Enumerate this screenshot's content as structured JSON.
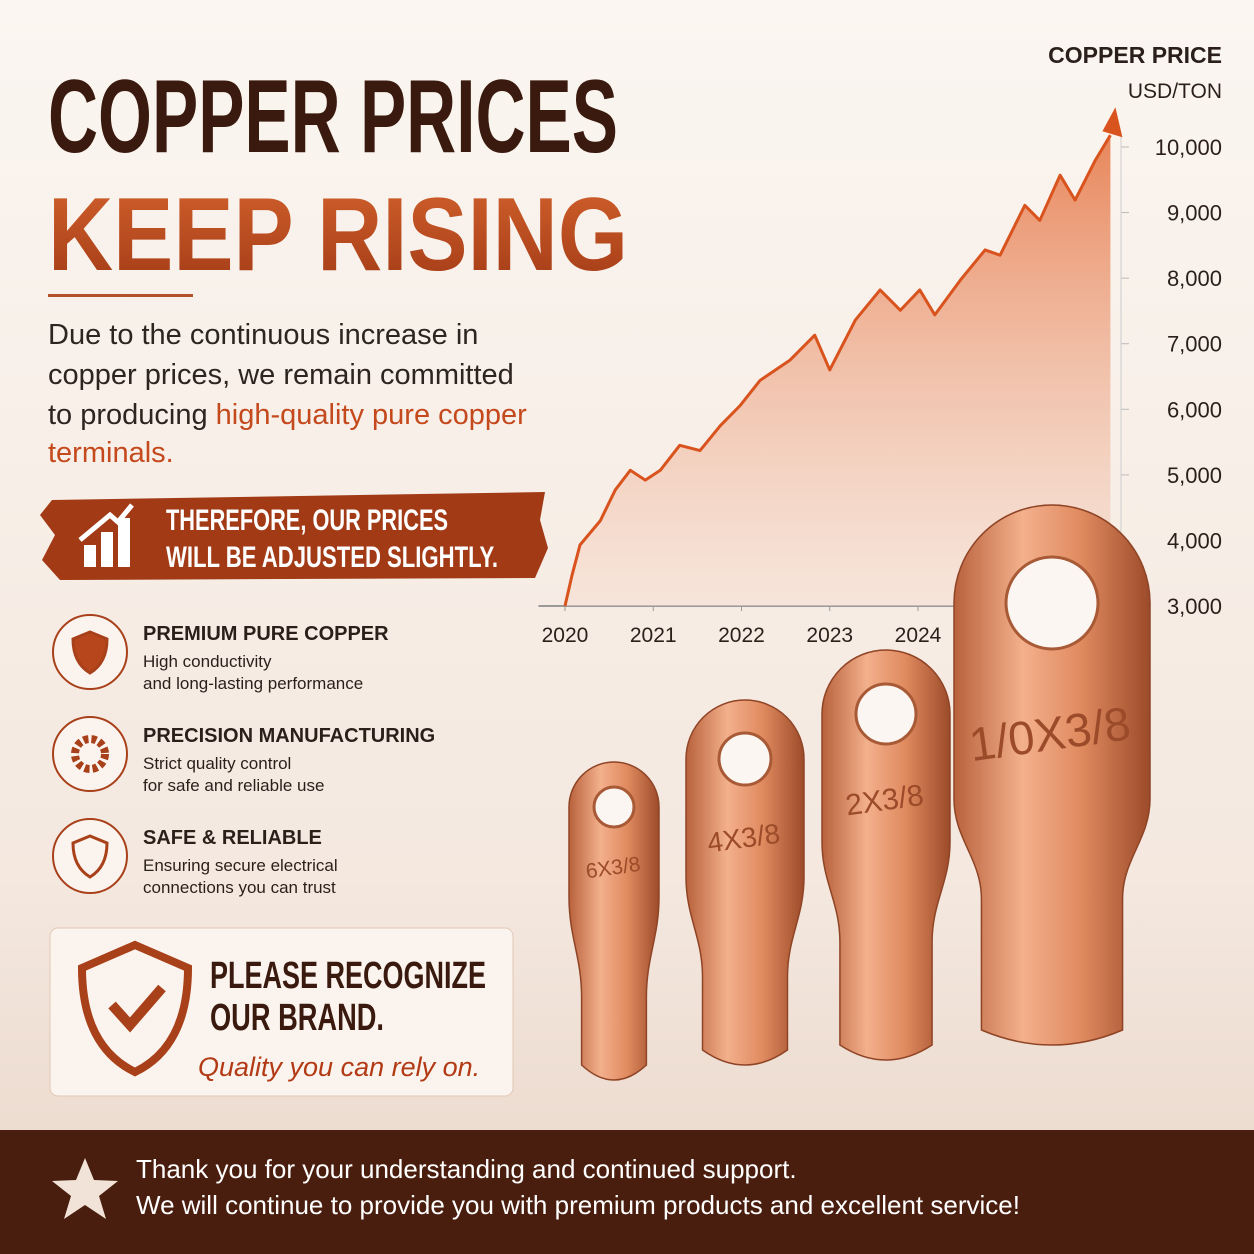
{
  "header": {
    "title_line1": "COPPER PRICES",
    "title_line2": "KEEP RISING"
  },
  "intro": {
    "lines": [
      "Due to the continuous increase in",
      "copper prices, we remain committed",
      "to producing "
    ],
    "highlight": [
      "high-quality pure copper",
      "terminals."
    ]
  },
  "banner": {
    "lines": [
      "THEREFORE, OUR PRICES",
      "WILL BE ADJUSTED SLIGHTLY."
    ]
  },
  "features": [
    {
      "title": "PREMIUM PURE COPPER",
      "description": [
        "High conductivity",
        "and long-lasting performance"
      ]
    },
    {
      "title": "PRECISION MANUFACTURING",
      "description": [
        "Strict quality control",
        "for safe and reliable use"
      ]
    },
    {
      "title": "SAFE & RELIABLE",
      "description": [
        "Ensuring secure electrical",
        "connections you can trust"
      ]
    }
  ],
  "brand": {
    "lines": [
      "PLEASE RECOGNIZE",
      "OUR BRAND."
    ],
    "tagline": "Quality you can rely on."
  },
  "products": [
    "6X3/8",
    "4X3/8",
    "2X3/8",
    "1/0X3/8"
  ],
  "footer": {
    "lines": [
      "Thank you for your understanding and continued support.",
      "We will continue to provide you with premium products and excellent service!"
    ]
  },
  "chart_data": {
    "type": "line",
    "title": "COPPER PRICE",
    "subtitle": "USD/TON",
    "x": [
      2020.0,
      2020.08,
      2020.17,
      2020.4,
      2020.57,
      2020.74,
      2020.91,
      2021.08,
      2021.3,
      2021.53,
      2021.76,
      2021.98,
      2022.21,
      2022.55,
      2022.83,
      2023.0,
      2023.29,
      2023.57,
      2023.8,
      2024.02,
      2024.19,
      2024.48,
      2024.76,
      2024.93,
      2025.21,
      2025.38,
      2025.61,
      2025.78,
      2026.01,
      2026.18
    ],
    "series": [
      {
        "color": "#d9531e",
        "values": [
          3000,
          3470,
          3930,
          4300,
          4770,
          5070,
          4920,
          5070,
          5450,
          5370,
          5750,
          6050,
          6440,
          6750,
          7130,
          6600,
          7360,
          7820,
          7510,
          7820,
          7440,
          7970,
          8430,
          8350,
          9110,
          8880,
          9570,
          9190,
          9800,
          10180
        ]
      }
    ],
    "xlim": [
      2019.7,
      2026.3
    ],
    "xticks": [
      2020,
      2021,
      2022,
      2023,
      2024
    ],
    "ylim": [
      3000,
      10000
    ],
    "yticks": [
      {
        "value": 3000,
        "label": "3,000"
      },
      {
        "value": 4000,
        "label": "4,000"
      },
      {
        "value": 5000,
        "label": "5,000"
      },
      {
        "value": 6000,
        "label": "6,000"
      },
      {
        "value": 7000,
        "label": "7,000"
      },
      {
        "value": 8000,
        "label": "8,000"
      },
      {
        "value": 9000,
        "label": "9,000"
      },
      {
        "value": 10000,
        "label": "10,000"
      }
    ]
  }
}
